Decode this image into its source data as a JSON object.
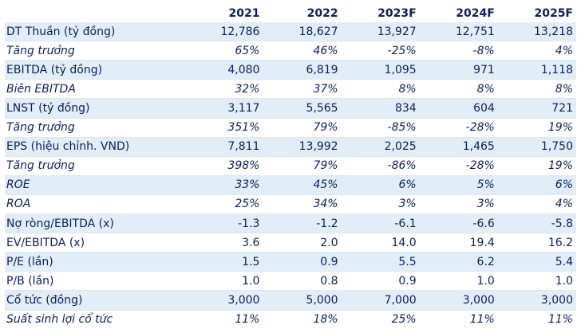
{
  "table": {
    "headers": [
      "",
      "2021",
      "2022",
      "2023F",
      "2024F",
      "2025F"
    ],
    "rows": [
      {
        "label": "DT Thuần (tỷ đồng)",
        "values": [
          "12,786",
          "18,627",
          "13,927",
          "12,751",
          "13,218"
        ],
        "italic": false,
        "shaded": true
      },
      {
        "label": "Tăng trưởng",
        "values": [
          "65%",
          "46%",
          "-25%",
          "-8%",
          "4%"
        ],
        "italic": true,
        "shaded": false
      },
      {
        "label": "EBITDA (tỷ đồng)",
        "values": [
          "4,080",
          "6,819",
          "1,095",
          "971",
          "1,118"
        ],
        "italic": false,
        "shaded": true
      },
      {
        "label": "Biên EBITDA",
        "values": [
          "32%",
          "37%",
          "8%",
          "8%",
          "8%"
        ],
        "italic": true,
        "shaded": false
      },
      {
        "label": "LNST (tỷ đồng)",
        "values": [
          "3,117",
          "5,565",
          "834",
          "604",
          "721"
        ],
        "italic": false,
        "shaded": true
      },
      {
        "label": "Tăng trưởng",
        "values": [
          "351%",
          "79%",
          "-85%",
          "-28%",
          "19%"
        ],
        "italic": true,
        "shaded": false
      },
      {
        "label": "EPS (hiệu chỉnh. VND)",
        "values": [
          "7,811",
          "13,992",
          "2,025",
          "1,465",
          "1,750"
        ],
        "italic": false,
        "shaded": true
      },
      {
        "label": "Tăng trưởng",
        "values": [
          "398%",
          "79%",
          "-86%",
          "-28%",
          "19%"
        ],
        "italic": true,
        "shaded": false
      },
      {
        "label": "ROE",
        "values": [
          "33%",
          "45%",
          "6%",
          "5%",
          "6%"
        ],
        "italic": true,
        "shaded": true
      },
      {
        "label": "ROA",
        "values": [
          "25%",
          "34%",
          "3%",
          "3%",
          "4%"
        ],
        "italic": true,
        "shaded": false
      },
      {
        "label": "Nợ ròng/EBITDA (x)",
        "values": [
          "-1.3",
          "-1.2",
          "-6.1",
          "-6.6",
          "-5.8"
        ],
        "italic": false,
        "shaded": true
      },
      {
        "label": "EV/EBITDA (x)",
        "values": [
          "3.6",
          "2.0",
          "14.0",
          "19.4",
          "16.2"
        ],
        "italic": false,
        "shaded": false
      },
      {
        "label": "P/E (lần)",
        "values": [
          "1.5",
          "0.9",
          "5.5",
          "6.2",
          "5.4"
        ],
        "italic": false,
        "shaded": true
      },
      {
        "label": "P/B (lần)",
        "values": [
          "1.0",
          "0.8",
          "0.9",
          "1.0",
          "1.0"
        ],
        "italic": false,
        "shaded": false
      },
      {
        "label": "Cổ tức (đồng)",
        "values": [
          "3,000",
          "5,000",
          "7,000",
          "3,000",
          "3,000"
        ],
        "italic": false,
        "shaded": true
      },
      {
        "label": "Suất sinh lợi cổ tức",
        "values": [
          "11%",
          "18%",
          "25%",
          "11%",
          "11%"
        ],
        "italic": true,
        "shaded": false
      }
    ]
  }
}
